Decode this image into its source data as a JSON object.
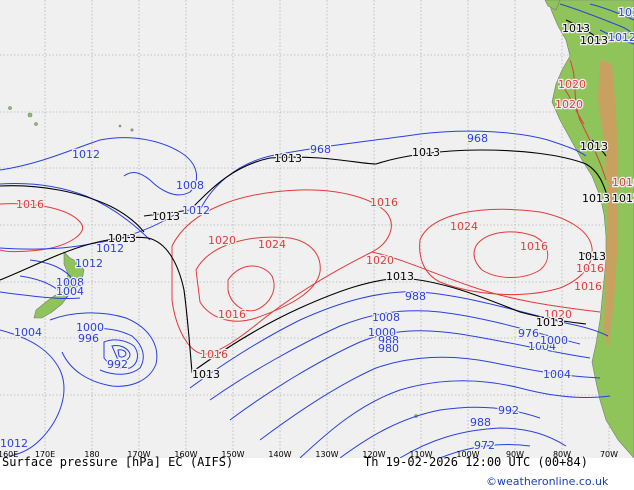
{
  "colors": {
    "ocean": "#f0f0f0",
    "land": "#8fc45a",
    "grid": "#b5b5b5",
    "low": "#2a3fe0",
    "high": "#e03b3b",
    "std": "#000000",
    "coast": "#7a7a7a"
  },
  "footer": {
    "title": "Surface pressure [hPa] EC (AIFS)",
    "valid": "Th 19-02-2026 12:00 UTC (00+84)",
    "credit": "©weatheronline.co.uk"
  },
  "axis": {
    "lon_labels": [
      "160E",
      "170E",
      "180",
      "170W",
      "160W",
      "150W",
      "140W",
      "130W",
      "120W",
      "110W",
      "100W",
      "90W",
      "80W",
      "70W"
    ]
  },
  "isobars": {
    "low": [
      {
        "label": "1012",
        "group": "a"
      },
      {
        "label": "1008",
        "group": "a"
      },
      {
        "label": "1012",
        "group": "b"
      },
      {
        "label": "1012",
        "group": "c"
      },
      {
        "label": "1012",
        "group": "d"
      },
      {
        "label": "1008",
        "group": "e"
      },
      {
        "label": "1004",
        "group": "f"
      },
      {
        "label": "1000",
        "group": "f"
      },
      {
        "label": "996",
        "group": "g"
      },
      {
        "label": "992",
        "group": "g"
      },
      {
        "label": "988",
        "group": "g"
      },
      {
        "label": "1008",
        "group": "h"
      },
      {
        "label": "1000",
        "group": "h"
      },
      {
        "label": "988",
        "group": "h"
      },
      {
        "label": "980",
        "group": "h"
      },
      {
        "label": "976",
        "group": "h"
      },
      {
        "label": "1004",
        "group": "i"
      },
      {
        "label": "1000",
        "group": "i"
      },
      {
        "label": "1004",
        "group": "i"
      },
      {
        "label": "992",
        "group": "i"
      },
      {
        "label": "988",
        "group": "i"
      },
      {
        "label": "972",
        "group": "j"
      },
      {
        "label": "968",
        "group": "j"
      },
      {
        "label": "968",
        "group": "j"
      },
      {
        "label": "1012",
        "group": "k"
      },
      {
        "label": "1012",
        "group": "k"
      },
      {
        "label": "1012",
        "group": "k"
      },
      {
        "label": "1004",
        "group": "l"
      }
    ],
    "high": [
      {
        "label": "1016"
      },
      {
        "label": "1016"
      },
      {
        "label": "1020"
      },
      {
        "label": "1024"
      },
      {
        "label": "1016"
      },
      {
        "label": "1016"
      },
      {
        "label": "1020"
      },
      {
        "label": "1024"
      },
      {
        "label": "1016"
      },
      {
        "label": "1020"
      },
      {
        "label": "1016"
      },
      {
        "label": "1016"
      },
      {
        "label": "1020"
      },
      {
        "label": "1020"
      },
      {
        "label": "1016"
      }
    ],
    "std": [
      {
        "label": "1013"
      },
      {
        "label": "1013"
      },
      {
        "label": "1013"
      },
      {
        "label": "1013"
      },
      {
        "label": "1013"
      },
      {
        "label": "1013"
      },
      {
        "label": "1013"
      },
      {
        "label": "1013"
      },
      {
        "label": "1013"
      },
      {
        "label": "1013"
      },
      {
        "label": "1013"
      },
      {
        "label": "1013"
      },
      {
        "label": "1013"
      }
    ]
  }
}
